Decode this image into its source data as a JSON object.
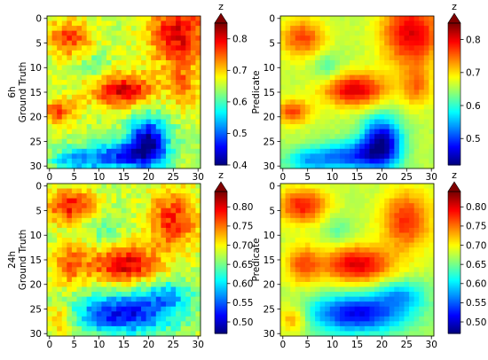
{
  "chart_data": {
    "type": "heatmap",
    "grid_size": 31,
    "colormap": "jet",
    "tick_labels": [
      "0",
      "5",
      "10",
      "15",
      "20",
      "25",
      "30"
    ],
    "tick_values": [
      0,
      5,
      10,
      15,
      20,
      25,
      30
    ],
    "panels": [
      {
        "id": "6h-gt",
        "row_label": "6h",
        "ylabel": "Ground Truth",
        "noise": 0.06,
        "seed": 11,
        "variant": 0
      },
      {
        "id": "6h-pred",
        "row_label": "",
        "ylabel": "Predicate",
        "noise": 0.018,
        "seed": 23,
        "variant": 0
      },
      {
        "id": "24h-gt",
        "row_label": "24h",
        "ylabel": "Ground Truth",
        "noise": 0.06,
        "seed": 37,
        "variant": 1
      },
      {
        "id": "24h-pred",
        "row_label": "",
        "ylabel": "Predicate",
        "noise": 0.018,
        "seed": 41,
        "variant": 1
      }
    ],
    "colorbars": [
      {
        "label": "z",
        "vmin": 0.4,
        "vmax": 0.85,
        "ticks": [
          "0.4",
          "0.5",
          "0.6",
          "0.7",
          "0.8"
        ],
        "tick_values": [
          0.4,
          0.5,
          0.6,
          0.7,
          0.8
        ]
      },
      {
        "label": "z",
        "vmin": 0.42,
        "vmax": 0.85,
        "ticks": [
          "0.5",
          "0.6",
          "0.7",
          "0.8"
        ],
        "tick_values": [
          0.5,
          0.6,
          0.7,
          0.8
        ]
      },
      {
        "label": "z",
        "vmin": 0.47,
        "vmax": 0.84,
        "ticks": [
          "0.50",
          "0.55",
          "0.60",
          "0.65",
          "0.70",
          "0.75",
          "0.80"
        ],
        "tick_values": [
          0.5,
          0.55,
          0.6,
          0.65,
          0.7,
          0.75,
          0.8
        ]
      },
      {
        "label": "z",
        "vmin": 0.47,
        "vmax": 0.84,
        "ticks": [
          "0.50",
          "0.55",
          "0.60",
          "0.65",
          "0.70",
          "0.75",
          "0.80"
        ],
        "tick_values": [
          0.5,
          0.55,
          0.6,
          0.65,
          0.7,
          0.75,
          0.8
        ]
      }
    ]
  }
}
